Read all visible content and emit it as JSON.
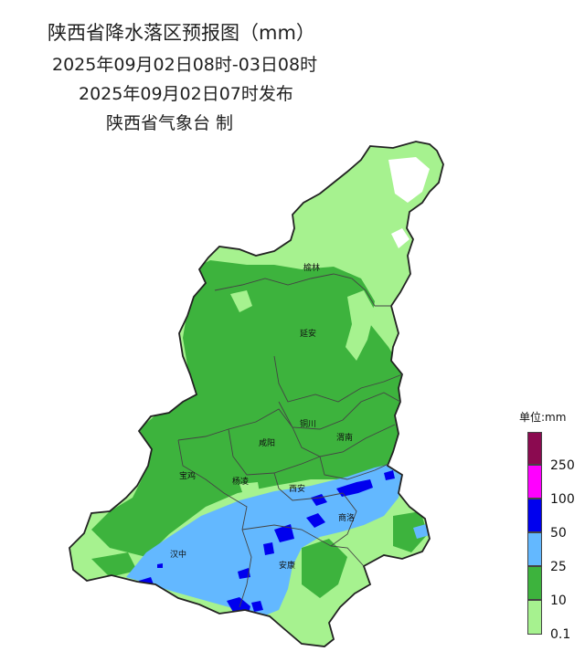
{
  "header": {
    "title": "陕西省降水落区预报图（mm）",
    "period": "2025年09月02日08时-03日08时",
    "issued": "2025年09月02日07时发布",
    "issuer": "陕西省气象台 制"
  },
  "cities": [
    {
      "id": "yulin",
      "name": "榆林"
    },
    {
      "id": "yanan",
      "name": "延安"
    },
    {
      "id": "tongchuan",
      "name": "铜川"
    },
    {
      "id": "weinan",
      "name": "渭南"
    },
    {
      "id": "xianyang",
      "name": "咸阳"
    },
    {
      "id": "baoji",
      "name": "宝鸡"
    },
    {
      "id": "yangling",
      "name": "杨凌"
    },
    {
      "id": "xian",
      "name": "西安"
    },
    {
      "id": "shangluo",
      "name": "商洛"
    },
    {
      "id": "hanzhong",
      "name": "汉中"
    },
    {
      "id": "ankang",
      "name": "安康"
    }
  ],
  "legend": {
    "title": "单位:mm",
    "classes": [
      {
        "label": "",
        "color": "#8b0a50"
      },
      {
        "label": "250",
        "color": "#ff00ff"
      },
      {
        "label": "100",
        "color": "#0000ee"
      },
      {
        "label": "50",
        "color": "#63b8ff"
      },
      {
        "label": "25",
        "color": "#3db33d"
      },
      {
        "label": "10",
        "color": "#a6f28f"
      },
      {
        "label": "0.1",
        "color": ""
      }
    ]
  },
  "colors": {
    "light_rain": "#a6f28f",
    "moderate_rain": "#3db33d",
    "heavy_rain": "#63b8ff",
    "rainstorm": "#0000ee",
    "boundary": "#333333"
  }
}
